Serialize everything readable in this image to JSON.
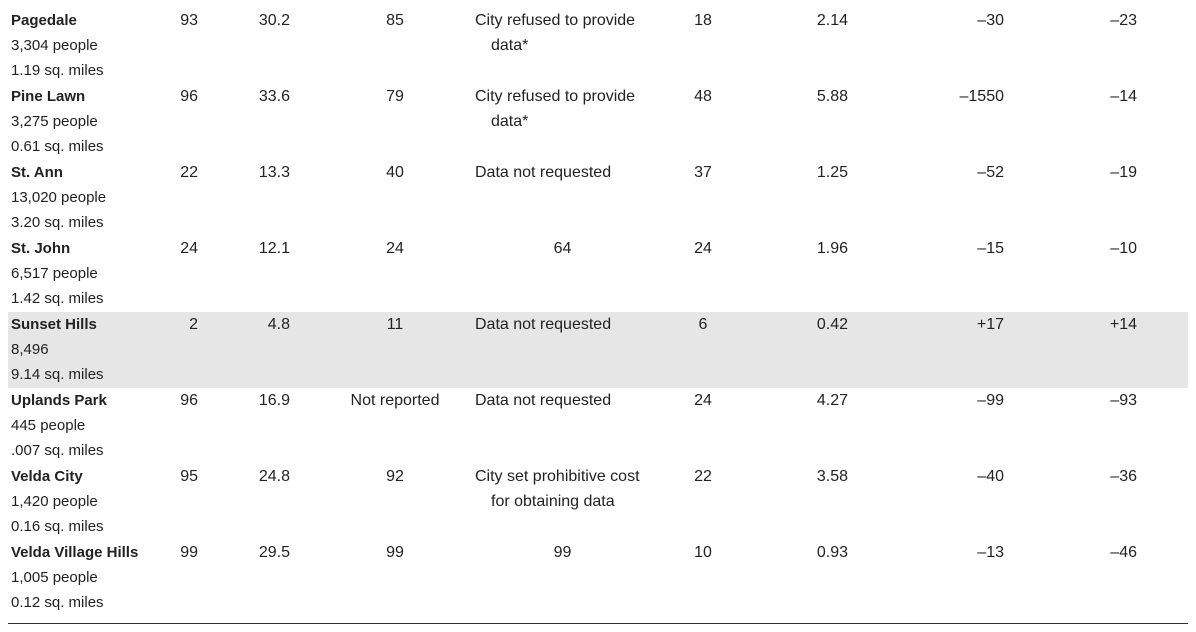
{
  "table": {
    "rows": [
      [
        "Pagedale",
        "3,304 people",
        "1.19 sq. miles",
        "93",
        "30.2",
        "85",
        "City refused to provide data*",
        "18",
        "2.14",
        "–30",
        "–23"
      ],
      [
        "Pine Lawn",
        "3,275 people",
        "0.61 sq. miles",
        "96",
        "33.6",
        "79",
        "City refused to provide data*",
        "48",
        "5.88",
        "–1550",
        "–14"
      ],
      [
        "St. Ann",
        "13,020 people",
        "3.20 sq. miles",
        "22",
        "13.3",
        "40",
        "Data not requested",
        "37",
        "1.25",
        "–52",
        "–19"
      ],
      [
        "St. John",
        "6,517 people",
        "1.42 sq. miles",
        "24",
        "12.1",
        "24",
        "64",
        "24",
        "1.96",
        "–15",
        "–10"
      ],
      [
        "Sunset Hills",
        "8,496",
        "9.14 sq. miles",
        "2",
        "4.8",
        "11",
        "Data not requested",
        "6",
        "0.42",
        "+17",
        "+14"
      ],
      [
        "Uplands Park",
        "445 people",
        ".007 sq. miles",
        "96",
        "16.9",
        "Not reported",
        "Data not requested",
        "24",
        "4.27",
        "–99",
        "–93"
      ],
      [
        "Velda City",
        "1,420 people",
        "0.16 sq. miles",
        "95",
        "24.8",
        "92",
        "City set prohibitive cost for obtaining data",
        "22",
        "3.58",
        "–40",
        "–36"
      ],
      [
        "Velda Village Hills",
        "1,005 people",
        "0.12 sq. miles",
        "99",
        "29.5",
        "99",
        "99",
        "10",
        "0.93",
        "–13",
        "–46"
      ]
    ]
  }
}
